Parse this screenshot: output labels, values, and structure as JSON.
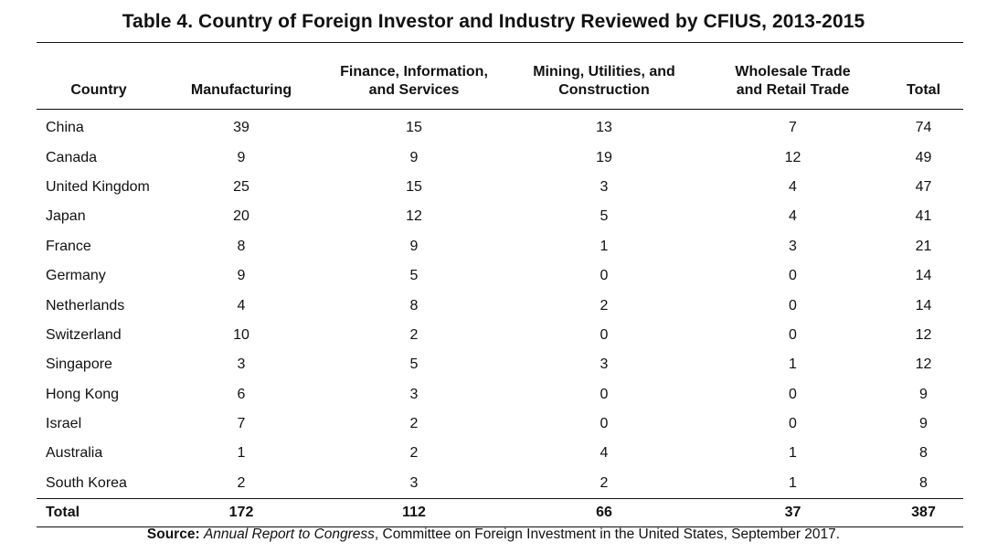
{
  "title": "Table 4. Country of Foreign Investor and Industry Reviewed by CFIUS, 2013-2015",
  "headers": [
    {
      "lines": [
        "Country"
      ]
    },
    {
      "lines": [
        "Manufacturing"
      ]
    },
    {
      "lines": [
        "Finance, Information,",
        "and Services"
      ]
    },
    {
      "lines": [
        "Mining, Utilities, and",
        "Construction"
      ]
    },
    {
      "lines": [
        "Wholesale Trade",
        "and Retail Trade"
      ]
    },
    {
      "lines": [
        "Total"
      ]
    }
  ],
  "rows": [
    [
      "China",
      "39",
      "15",
      "13",
      "7",
      "74"
    ],
    [
      "Canada",
      "9",
      "9",
      "19",
      "12",
      "49"
    ],
    [
      "United Kingdom",
      "25",
      "15",
      "3",
      "4",
      "47"
    ],
    [
      "Japan",
      "20",
      "12",
      "5",
      "4",
      "41"
    ],
    [
      "France",
      "8",
      "9",
      "1",
      "3",
      "21"
    ],
    [
      "Germany",
      "9",
      "5",
      "0",
      "0",
      "14"
    ],
    [
      "Netherlands",
      "4",
      "8",
      "2",
      "0",
      "14"
    ],
    [
      "Switzerland",
      "10",
      "2",
      "0",
      "0",
      "12"
    ],
    [
      "Singapore",
      "3",
      "5",
      "3",
      "1",
      "12"
    ],
    [
      "Hong Kong",
      "6",
      "3",
      "0",
      "0",
      "9"
    ],
    [
      "Israel",
      "7",
      "2",
      "0",
      "0",
      "9"
    ],
    [
      "Australia",
      "1",
      "2",
      "4",
      "1",
      "8"
    ],
    [
      "South Korea",
      "2",
      "3",
      "2",
      "1",
      "8"
    ]
  ],
  "total_row": [
    "Total",
    "172",
    "112",
    "66",
    "37",
    "387"
  ],
  "source": {
    "label": "Source:",
    "title": "Annual Report to Congress",
    "rest": ", Committee on Foreign Investment in the United States, September 2017."
  }
}
